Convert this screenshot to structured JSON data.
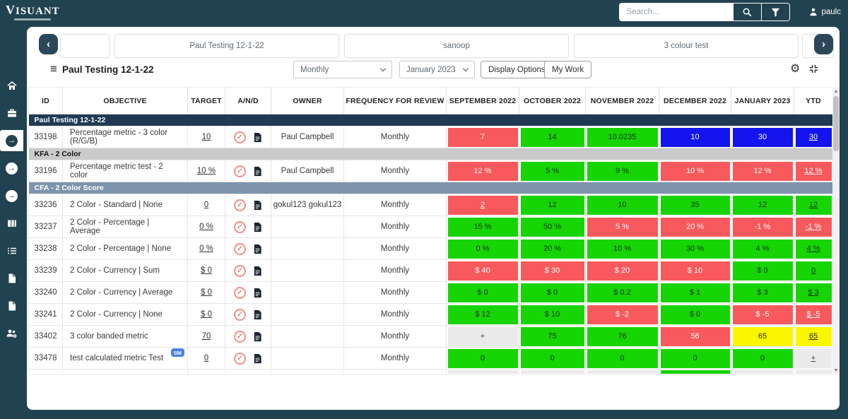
{
  "topbar": {
    "logo": "VISUANT",
    "search_placeholder": "Search...",
    "user": "paulc"
  },
  "icons": {
    "chevron_left": "‹",
    "chevron_right": "›",
    "hamburger": "≡",
    "gear": "⚙",
    "arrow_circle": "→",
    "check": "✓",
    "scroll_up": "▲",
    "scroll_down": "▼",
    "sidebar_items": [
      "home-icon",
      "briefcase-icon",
      "scorecard-arrow-icon",
      "arrow-circle-icon",
      "arrow-circle-icon",
      "columns-icon",
      "checklist-icon",
      "file-icon",
      "file-icon",
      "users-gear-icon"
    ],
    "and_column_icons": [
      "approve-icon",
      "note-icon"
    ]
  },
  "tabs": {
    "items": [
      "Paul Testing 12-1-22",
      "sanoop",
      "3 colour test"
    ]
  },
  "toolbar": {
    "title": "Paul Testing 12-1-22",
    "period_select": "Monthly",
    "month_select": "January 2023",
    "display_options_label": "Display Options",
    "my_work_label": "My Work"
  },
  "table": {
    "columns": [
      "ID",
      "OBJECTIVE",
      "TARGET",
      "A/N/D",
      "OWNER",
      "FREQUENCY FOR REVIEW",
      "SEPTEMBER 2022",
      "OCTOBER 2022",
      "NOVEMBER 2022",
      "DECEMBER 2022",
      "JANUARY 2023",
      "YTD"
    ],
    "colors": {
      "red": "#f8595c",
      "green": "#17d404",
      "blue": "#1414ee",
      "yellow": "#f9f600",
      "lightgray": "#eaeaea",
      "section_dark": "#203a54",
      "section_gray": "#cacaca",
      "section_slate": "#7d94ac",
      "badge_blue": "#4a7fe8"
    },
    "groups": [
      {
        "label": "Paul Testing 12-1-22",
        "style": "dark",
        "rows": [
          {
            "id": "33198",
            "objective": "Percentage metric - 3 color (R/G/B)",
            "target": "10",
            "owner": "Paul Campbell",
            "frequency": "Monthly",
            "values": [
              [
                "7",
                "red"
              ],
              [
                "14",
                "green"
              ],
              [
                "10.0235",
                "green"
              ],
              [
                "10",
                "blue"
              ],
              [
                "30",
                "blue"
              ],
              [
                "30",
                "blue",
                "u"
              ]
            ]
          }
        ]
      },
      {
        "label": "KFA - 2 Color",
        "style": "gray",
        "rows": [
          {
            "id": "33196",
            "objective": "Percentage metric test - 2 color",
            "target": "10 %",
            "owner": "Paul Campbell",
            "frequency": "Monthly",
            "values": [
              [
                "12 %",
                "red"
              ],
              [
                "5 %",
                "green"
              ],
              [
                "9 %",
                "green"
              ],
              [
                "10 %",
                "red"
              ],
              [
                "12 %",
                "red"
              ],
              [
                "12 %",
                "red",
                "u"
              ]
            ]
          }
        ]
      },
      {
        "label": "CFA - 2 Color Score",
        "style": "slate",
        "rows": [
          {
            "id": "33236",
            "objective": "2 Color - Standard | None",
            "target": "0",
            "owner": "gokul123 gokul123",
            "frequency": "Monthly",
            "values": [
              [
                "2",
                "red",
                "u"
              ],
              [
                "12",
                "green"
              ],
              [
                "10",
                "green"
              ],
              [
                "35",
                "green"
              ],
              [
                "12",
                "green"
              ],
              [
                "12",
                "green",
                "u"
              ]
            ]
          },
          {
            "id": "33237",
            "objective": "2 Color - Percentage | Average",
            "target": "0 %",
            "owner": "",
            "frequency": "Monthly",
            "values": [
              [
                "15 %",
                "green"
              ],
              [
                "50 %",
                "green"
              ],
              [
                "5 %",
                "red"
              ],
              [
                "20 %",
                "red"
              ],
              [
                "-1 %",
                "red"
              ],
              [
                "-1 %",
                "red",
                "u"
              ]
            ]
          },
          {
            "id": "33238",
            "objective": "2 Color - Percentage | None",
            "target": "0 %",
            "owner": "",
            "frequency": "Monthly",
            "values": [
              [
                "0 %",
                "green"
              ],
              [
                "20 %",
                "green"
              ],
              [
                "10 %",
                "green"
              ],
              [
                "30 %",
                "green"
              ],
              [
                "4 %",
                "green"
              ],
              [
                "4 %",
                "green",
                "u"
              ]
            ]
          },
          {
            "id": "33239",
            "objective": "2 Color - Currency | Sum",
            "target": "$ 0",
            "owner": "",
            "frequency": "Monthly",
            "values": [
              [
                "$ 40",
                "red"
              ],
              [
                "$ 30",
                "red"
              ],
              [
                "$ 20",
                "red"
              ],
              [
                "$ 10",
                "red"
              ],
              [
                "$ 0",
                "green"
              ],
              [
                "0",
                "green",
                "u"
              ]
            ]
          },
          {
            "id": "33240",
            "objective": "2 Color - Currency | Average",
            "target": "$ 0",
            "owner": "",
            "frequency": "Monthly",
            "values": [
              [
                "$ 0",
                "green"
              ],
              [
                "$ 0",
                "green"
              ],
              [
                "$ 0.2",
                "green"
              ],
              [
                "$ 1",
                "green"
              ],
              [
                "$ 3",
                "green"
              ],
              [
                "$ 3",
                "green",
                "u"
              ]
            ]
          },
          {
            "id": "33241",
            "objective": "2 Color - Currency | None",
            "target": "$ 0",
            "owner": "",
            "frequency": "Monthly",
            "values": [
              [
                "$ 12",
                "green"
              ],
              [
                "$ 10",
                "green"
              ],
              [
                "$ -2",
                "red"
              ],
              [
                "$ 0",
                "green"
              ],
              [
                "$ -5",
                "red"
              ],
              [
                "$ -5",
                "red",
                "u"
              ]
            ]
          },
          {
            "id": "33402",
            "objective": "3 color banded metric",
            "target": "70",
            "owner": "",
            "frequency": "Monthly",
            "values": [
              [
                "+",
                "lightgray"
              ],
              [
                "75",
                "green"
              ],
              [
                "76",
                "green"
              ],
              [
                "56",
                "red"
              ],
              [
                "65",
                "yellow"
              ],
              [
                "65",
                "yellow",
                "u"
              ]
            ]
          },
          {
            "id": "33478",
            "objective": "test calculated metric Test",
            "badge": "SM",
            "target": "0",
            "owner": "",
            "frequency": "Monthly",
            "values": [
              [
                "0",
                "green"
              ],
              [
                "0",
                "green"
              ],
              [
                "0",
                "green"
              ],
              [
                "0",
                "green"
              ],
              [
                "0",
                "green"
              ],
              [
                "+",
                "lightgray",
                "u"
              ]
            ]
          }
        ]
      }
    ],
    "partial_row_values": [
      [
        "",
        "lightgray"
      ],
      [
        "",
        "lightgray"
      ],
      [
        "",
        "lightgray"
      ],
      [
        "",
        "green"
      ],
      [
        "",
        "lightgray"
      ],
      [
        "",
        "lightgray"
      ]
    ]
  }
}
